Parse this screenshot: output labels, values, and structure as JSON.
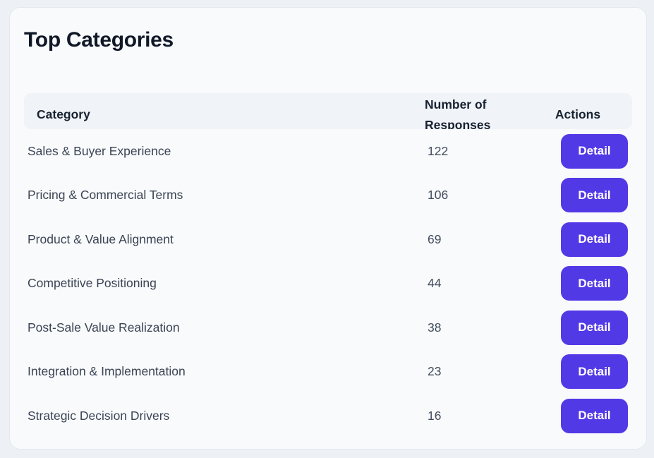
{
  "colors": {
    "page_bg": "#edf1f6",
    "card_bg": "#f9fafc",
    "card_border": "#e4e8ee",
    "header_bg": "#f0f3f8",
    "header_text": "#182230",
    "title_text": "#101828",
    "body_text": "#3a4454",
    "num_text": "#424d5d",
    "accent": "#5239e6"
  },
  "card": {
    "title": "Top Categories"
  },
  "table": {
    "headers": {
      "category": "Category",
      "responses": "Number of Responses",
      "actions": "Actions"
    },
    "rows": [
      {
        "category": "Sales & Buyer Experience",
        "responses": "122",
        "action_label": "Detail"
      },
      {
        "category": "Pricing & Commercial Terms",
        "responses": "106",
        "action_label": "Detail"
      },
      {
        "category": "Product & Value Alignment",
        "responses": "69",
        "action_label": "Detail"
      },
      {
        "category": "Competitive Positioning",
        "responses": "44",
        "action_label": "Detail"
      },
      {
        "category": "Post-Sale Value Realization",
        "responses": "38",
        "action_label": "Detail"
      },
      {
        "category": "Integration & Implementation",
        "responses": "23",
        "action_label": "Detail"
      },
      {
        "category": "Strategic Decision Drivers",
        "responses": "16",
        "action_label": "Detail"
      }
    ]
  }
}
